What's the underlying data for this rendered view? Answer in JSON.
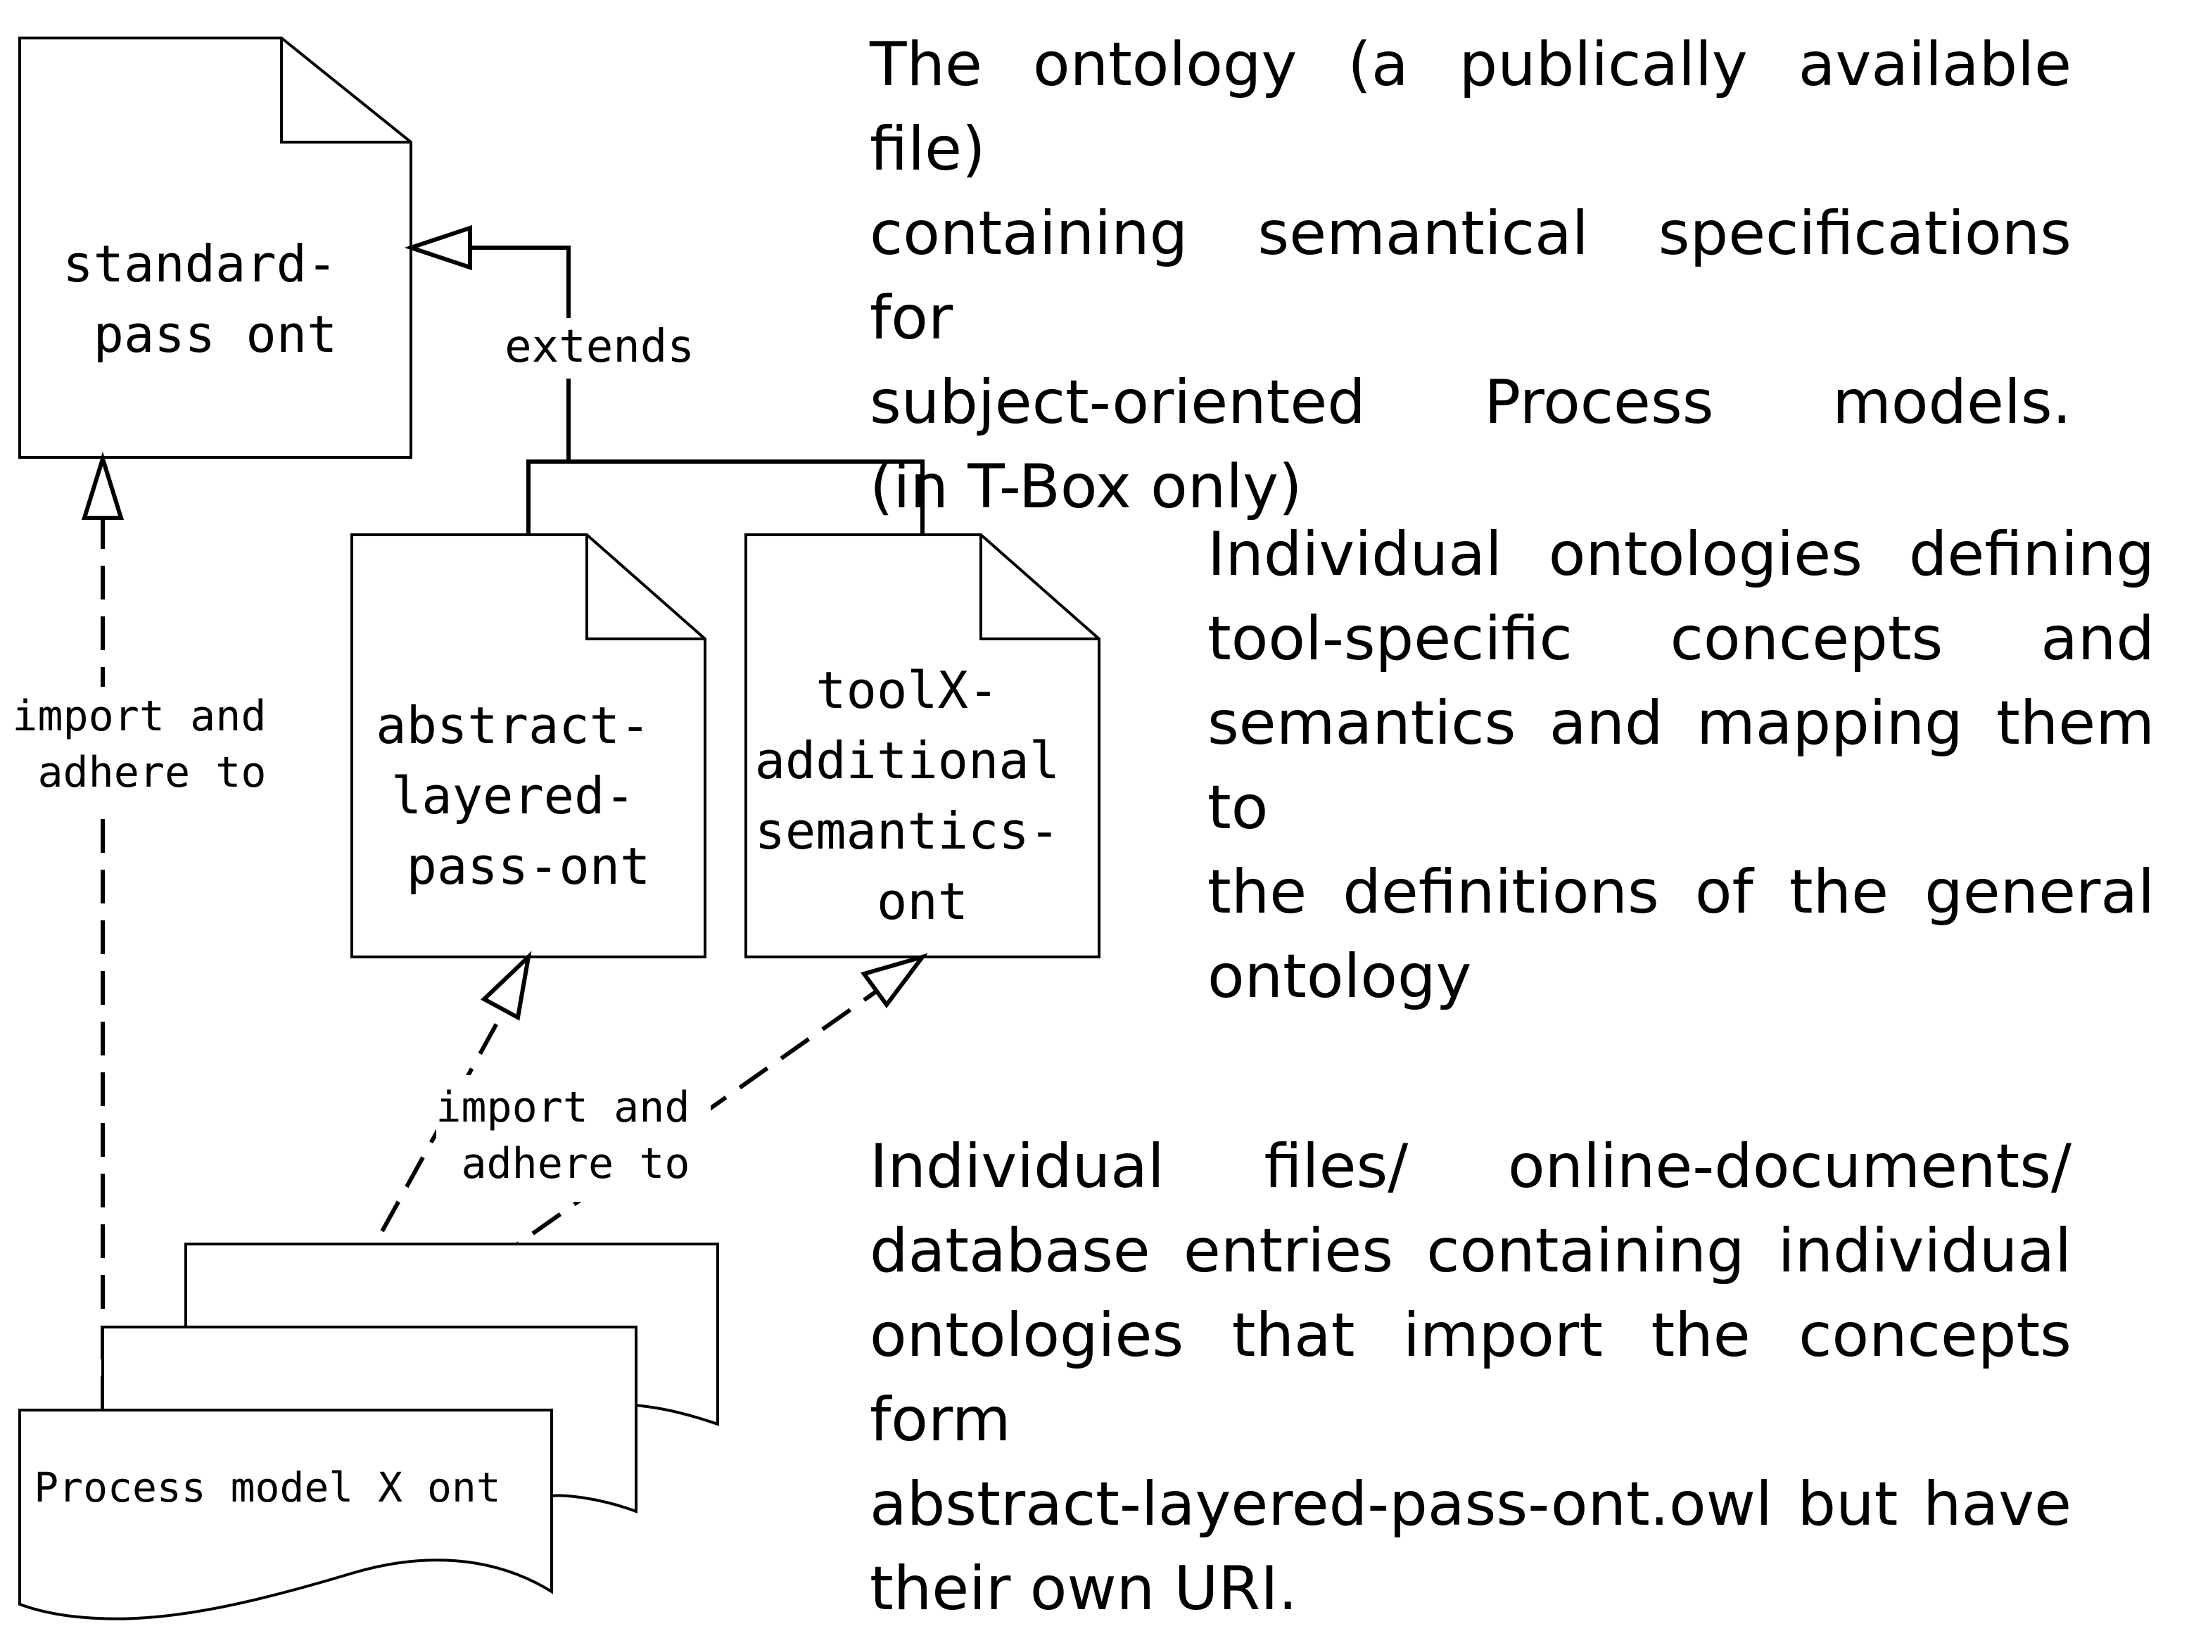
{
  "nodes": {
    "standard": {
      "lines": [
        "standard-",
        "pass ont"
      ]
    },
    "abstract": {
      "lines": [
        "abstract-",
        "layered-",
        "pass-ont"
      ]
    },
    "toolx": {
      "lines": [
        "toolX-",
        "additional",
        "semantics-",
        "ont"
      ]
    },
    "process_model": {
      "label": "Process model X ont"
    }
  },
  "edges": {
    "extends": "extends",
    "import_left": [
      "import and",
      "adhere to"
    ],
    "import_center": [
      "import and",
      "adhere to"
    ]
  },
  "descriptions": {
    "top": {
      "lines": [
        "The ontology (a publically available file)",
        "containing  semantical specifications for",
        "subject-oriented Process models.",
        "(in T-Box only)"
      ]
    },
    "middle": {
      "lines": [
        "Individual ontologies defining",
        "tool-specific concepts and",
        "semantics and mapping them to",
        "the definitions of the general",
        "ontology"
      ]
    },
    "bottom": {
      "lines": [
        "Individual files/ online-documents/",
        "database entries containing individual",
        "ontologies that import the concepts form",
        "abstract-layered-pass-ont.owl but have",
        "their own URI."
      ]
    }
  }
}
